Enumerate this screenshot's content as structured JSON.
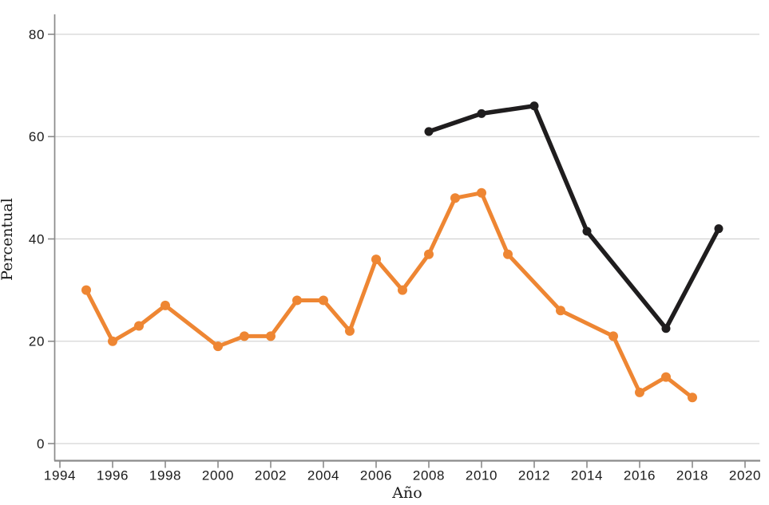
{
  "chart_data": {
    "type": "line",
    "title": "",
    "xlabel": "Año",
    "ylabel": "Percentual",
    "x_ticks": [
      1994,
      1996,
      1998,
      2000,
      2002,
      2004,
      2006,
      2008,
      2010,
      2012,
      2014,
      2016,
      2018,
      2020
    ],
    "y_ticks": [
      0,
      20,
      40,
      60,
      80
    ],
    "xlim": [
      1993.8,
      2020.6
    ],
    "ylim": [
      -3.3,
      84
    ],
    "grid": "horizontal-only",
    "gridline_color": "#cbcbcb",
    "axis_color": "#8a8a8a",
    "text_color": "#1b1b1b",
    "legend_position": "none",
    "series": [
      {
        "name": "orange-line",
        "color": "#EE8633",
        "marker": "circle",
        "points": [
          [
            1995,
            30
          ],
          [
            1996,
            20
          ],
          [
            1997,
            23
          ],
          [
            1998,
            27
          ],
          [
            2000,
            19
          ],
          [
            2001,
            21
          ],
          [
            2002,
            21
          ],
          [
            2003,
            28
          ],
          [
            2004,
            28
          ],
          [
            2005,
            22
          ],
          [
            2006,
            36
          ],
          [
            2007,
            30
          ],
          [
            2008,
            37
          ],
          [
            2009,
            48
          ],
          [
            2010,
            49
          ],
          [
            2011,
            37
          ],
          [
            2013,
            26
          ],
          [
            2015,
            21
          ],
          [
            2016,
            10
          ],
          [
            2017,
            13
          ],
          [
            2018,
            9
          ]
        ]
      },
      {
        "name": "black-line",
        "color": "#1F1D1E",
        "marker": "circle",
        "points": [
          [
            2008,
            61
          ],
          [
            2010,
            64.5
          ],
          [
            2012,
            66
          ],
          [
            2014,
            41.5
          ],
          [
            2017,
            22.5
          ],
          [
            2019,
            42
          ]
        ]
      }
    ]
  }
}
